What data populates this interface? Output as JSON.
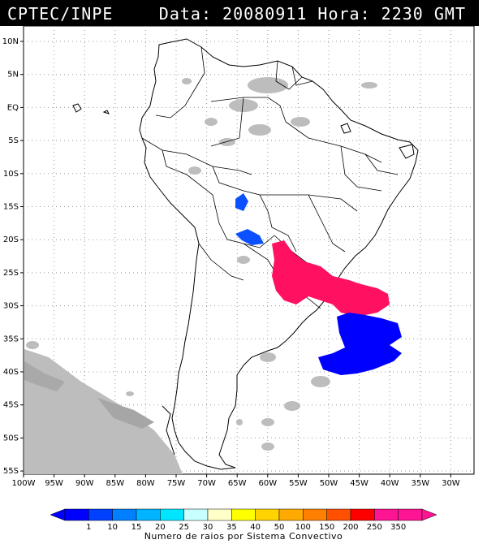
{
  "header": {
    "source": "CPTEC/INPE",
    "datetime": "Data: 20080911 Hora: 2230 GMT"
  },
  "lat_labels": [
    "10N",
    "5N",
    "EQ",
    "5S",
    "10S",
    "15S",
    "20S",
    "25S",
    "30S",
    "35S",
    "40S",
    "45S",
    "50S",
    "55S"
  ],
  "lon_labels": [
    "100W",
    "95W",
    "90W",
    "85W",
    "80W",
    "75W",
    "70W",
    "65W",
    "60W",
    "55W",
    "50W",
    "45W",
    "40W",
    "35W",
    "30W"
  ],
  "legend": {
    "values": [
      "1",
      "10",
      "15",
      "20",
      "25",
      "30",
      "35",
      "40",
      "50",
      "100",
      "150",
      "200",
      "250",
      "350"
    ],
    "colors": [
      "#0000ff",
      "#0040ff",
      "#0080ff",
      "#00b4ff",
      "#00e6ff",
      "#c8ffff",
      "#ffffc8",
      "#ffff00",
      "#ffd200",
      "#ffaa00",
      "#ff8000",
      "#ff5000",
      "#ff0000",
      "#ff1493",
      "#ff1493"
    ],
    "caption": "Numero de raios por Sistema Convectivo"
  },
  "systems": [
    {
      "name": "central-brazil-small-system",
      "color": "#0a50ff",
      "level": "10"
    },
    {
      "name": "paraguay-system",
      "color": "#0a50ff",
      "level": "10"
    },
    {
      "name": "southern-brazil-major-system",
      "color": "#ff1060",
      "level": "350"
    },
    {
      "name": "atlantic-offshore-system",
      "color": "#0000ff",
      "level": "1"
    }
  ]
}
